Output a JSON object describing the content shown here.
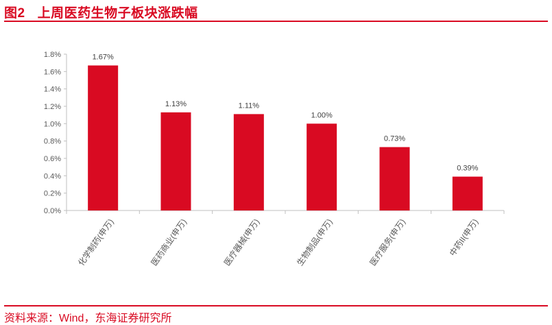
{
  "header": {
    "figure_number": "图2",
    "title": "上周医药生物子板块涨跌幅"
  },
  "footer": {
    "source": "资料来源：Wind，东海证券研究所"
  },
  "colors": {
    "accent": "#d90a22",
    "bar": "#d90a22"
  },
  "chart_data": {
    "type": "bar",
    "title": "上周医药生物子板块涨跌幅",
    "categories": [
      "化学制药(申万)",
      "医药商业(申万)",
      "医疗器械(申万)",
      "生物制品(申万)",
      "医疗服务(申万)",
      "中药II(申万)"
    ],
    "values": [
      1.67,
      1.13,
      1.11,
      1.0,
      0.73,
      0.39
    ],
    "data_labels": [
      "1.67%",
      "1.13%",
      "1.11%",
      "1.00%",
      "0.73%",
      "0.39%"
    ],
    "unit": "%",
    "ylim": [
      0,
      1.8
    ],
    "yticks": [
      "0.0%",
      "0.2%",
      "0.4%",
      "0.6%",
      "0.8%",
      "1.0%",
      "1.2%",
      "1.4%",
      "1.6%",
      "1.8%"
    ],
    "xlabel": "",
    "ylabel": "",
    "grid": false,
    "legend": "none"
  }
}
